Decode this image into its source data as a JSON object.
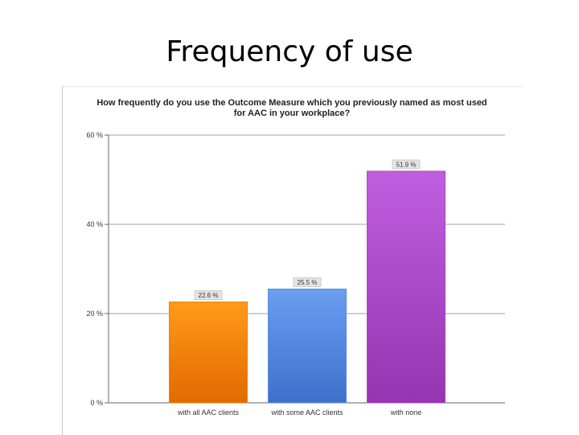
{
  "slide": {
    "title": "Frequency of use"
  },
  "chart_data": {
    "type": "bar",
    "title": "How frequently do you use the Outcome Measure which you previously named as most used for AAC in your workplace?",
    "categories": [
      "with all AAC clients",
      "with some AAC clients",
      "with none"
    ],
    "values": [
      22.6,
      25.5,
      51.9
    ],
    "value_labels": [
      "22.6 %",
      "25.5 %",
      "51.9 %"
    ],
    "yticks": [
      0,
      20,
      40,
      60
    ],
    "ytick_labels": [
      "0 %",
      "20 %",
      "40 %",
      "60 %"
    ],
    "ylim": [
      0,
      60
    ],
    "grid": true,
    "xlabel": "",
    "ylabel": "",
    "bar_colors": [
      [
        "#ff9a1a",
        "#e26a00"
      ],
      [
        "#6a9ef0",
        "#3f6fcc"
      ],
      [
        "#c05ee0",
        "#9535b0"
      ]
    ],
    "bar_border_colors": [
      "#e9800c",
      "#5b8be0",
      "#a748c8"
    ]
  }
}
